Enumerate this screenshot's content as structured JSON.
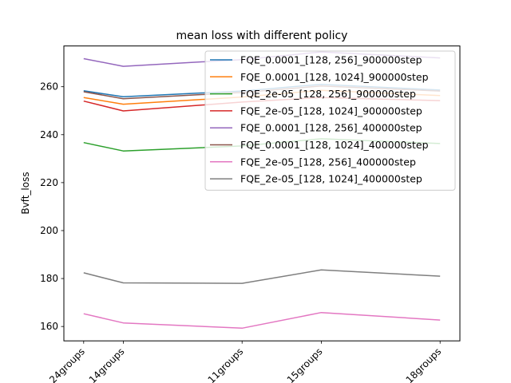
{
  "chart_data": {
    "type": "line",
    "title": "mean loss with different policy",
    "xlabel": "",
    "ylabel": "Bvft_loss",
    "categories": [
      "24groups",
      "14groups",
      "11groups",
      "15groups",
      "18groups"
    ],
    "x": [
      2.5,
      3.5,
      6.5,
      8.5,
      11.5
    ],
    "xlim": [
      2.0,
      12.0
    ],
    "ylim": [
      154.0,
      277.0
    ],
    "yticks": [
      160,
      180,
      200,
      220,
      240,
      260
    ],
    "grid": false,
    "legend_position": "top-right",
    "series": [
      {
        "name": "FQE_0.0001_[128, 256]_900000step",
        "color": "#1f77b4",
        "values": [
          258.3,
          255.8,
          258.2,
          261.0,
          258.6
        ]
      },
      {
        "name": "FQE_0.0001_[128, 1024]_900000step",
        "color": "#ff7f0e",
        "values": [
          255.5,
          252.7,
          255.7,
          258.5,
          256.3
        ]
      },
      {
        "name": "FQE_2e-05_[128, 256]_900000step",
        "color": "#2ca02c",
        "values": [
          236.7,
          233.2,
          235.3,
          238.3,
          236.3
        ]
      },
      {
        "name": "FQE_2e-05_[128, 1024]_900000step",
        "color": "#d62728",
        "values": [
          254.0,
          249.9,
          253.6,
          255.5,
          254.2
        ]
      },
      {
        "name": "FQE_0.0001_[128, 256]_400000step",
        "color": "#9467bd",
        "values": [
          271.7,
          268.5,
          271.3,
          274.5,
          272.0
        ]
      },
      {
        "name": "FQE_0.0001_[128, 1024]_400000step",
        "color": "#8c564b",
        "values": [
          257.9,
          255.0,
          257.6,
          260.3,
          258.2
        ]
      },
      {
        "name": "FQE_2e-05_[128, 256]_400000step",
        "color": "#e377c2",
        "values": [
          165.3,
          161.5,
          159.3,
          165.8,
          162.7
        ]
      },
      {
        "name": "FQE_2e-05_[128, 1024]_400000step",
        "color": "#7f7f7f",
        "values": [
          182.4,
          178.2,
          178.0,
          183.6,
          181.0
        ]
      }
    ]
  }
}
